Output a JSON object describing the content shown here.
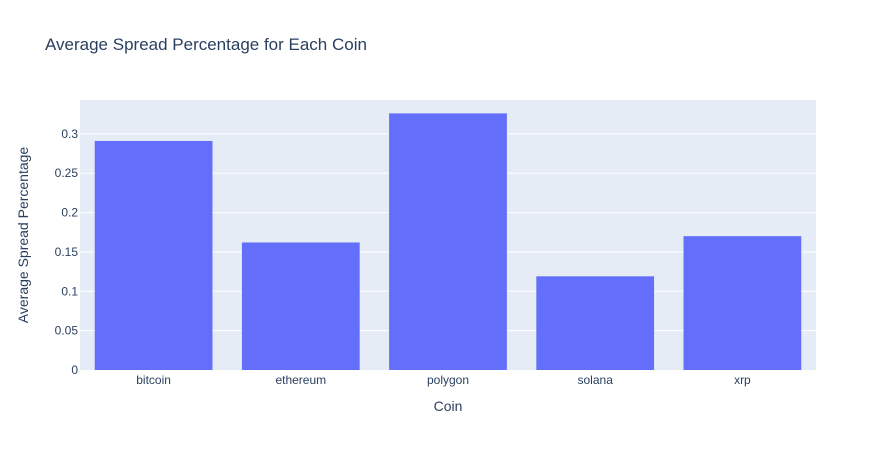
{
  "chart_data": {
    "type": "bar",
    "title": "Average Spread Percentage for Each Coin",
    "xlabel": "Coin",
    "ylabel": "Average Spread Percentage",
    "categories": [
      "bitcoin",
      "ethereum",
      "polygon",
      "solana",
      "xrp"
    ],
    "values": [
      0.291,
      0.162,
      0.326,
      0.119,
      0.17
    ],
    "ylim": [
      0,
      0.343
    ],
    "yticks": [
      0,
      0.05,
      0.1,
      0.15,
      0.2,
      0.25,
      0.3
    ],
    "ytick_labels": [
      "0",
      "0.05",
      "0.1",
      "0.15",
      "0.2",
      "0.25",
      "0.3"
    ],
    "grid": true,
    "colors": {
      "bar": "#636efa",
      "plot_bg": "#e5ecf6",
      "grid": "#ffffff",
      "text": "#2a3f5f"
    }
  }
}
